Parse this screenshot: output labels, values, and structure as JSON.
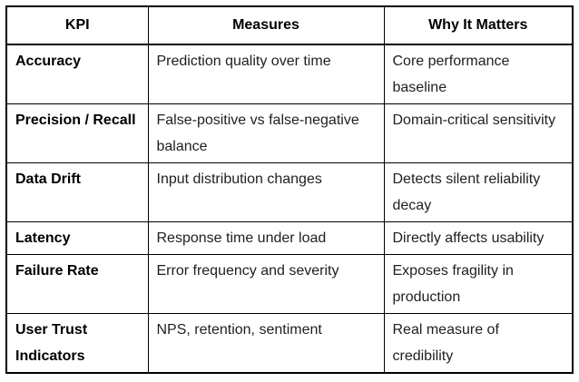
{
  "chart_data": {
    "type": "table",
    "columns": [
      "KPI",
      "Measures",
      "Why It Matters"
    ],
    "rows": [
      [
        "Accuracy",
        "Prediction quality over time",
        "Core performance\nbaseline"
      ],
      [
        "Precision / Recall",
        "False-positive vs false-negative\nbalance",
        "Domain-critical sensitivity"
      ],
      [
        "Data Drift",
        "Input distribution changes",
        "Detects silent reliability\ndecay"
      ],
      [
        "Latency",
        "Response time under load",
        "Directly affects usability"
      ],
      [
        "Failure Rate",
        "Error frequency and severity",
        "Exposes fragility in\nproduction"
      ],
      [
        "User Trust\nIndicators",
        "NPS, retention, sentiment",
        "Real measure of\ncredibility"
      ]
    ],
    "layout_hints": {
      "header_row_bold": true,
      "first_column_bold": true,
      "grid": true
    }
  },
  "colors": {
    "border": "#000000",
    "header_text": "#000000",
    "body_text": "#1f1f1f",
    "background": "#ffffff"
  }
}
